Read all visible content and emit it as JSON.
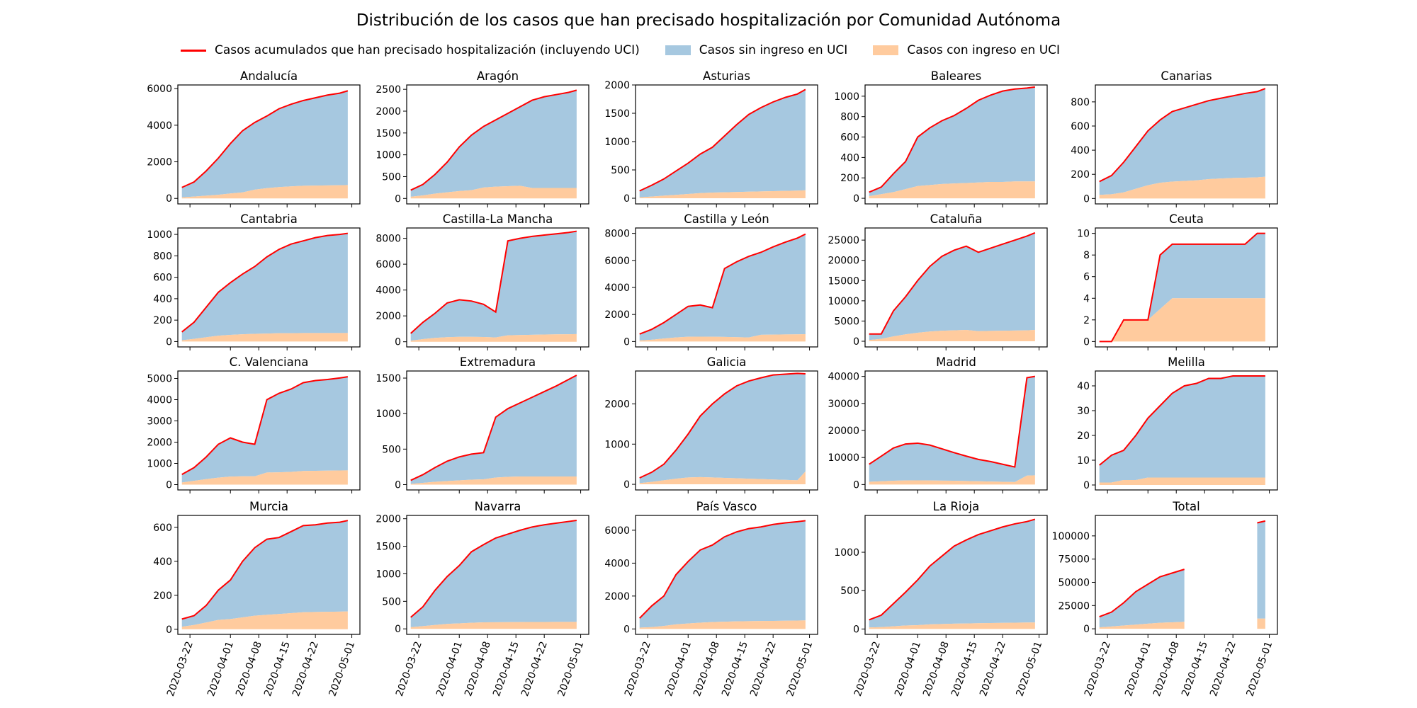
{
  "chart_data": {
    "type": "area",
    "title": "Distribución de los casos que han precisado hospitalización por Comunidad Autónoma",
    "legend": {
      "placement": "top",
      "entries": [
        {
          "label": "Casos acumulados que han precisado hospitalización (incluyendo UCI)",
          "kind": "line",
          "color": "#ff0000"
        },
        {
          "label": "Casos sin ingreso en UCI",
          "kind": "area",
          "color": "#a6c8e0"
        },
        {
          "label": "Casos con ingreso en UCI",
          "kind": "area",
          "color": "#ffcb9e"
        }
      ]
    },
    "x_tick_labels": [
      "2020-03-22",
      "2020-04-01",
      "2020-04-08",
      "2020-04-15",
      "2020-04-22",
      "2020-05-01"
    ],
    "x_range": [
      "2020-03-19",
      "2020-05-03"
    ],
    "dates": [
      "2020-03-20",
      "2020-03-23",
      "2020-03-26",
      "2020-03-29",
      "2020-04-01",
      "2020-04-04",
      "2020-04-07",
      "2020-04-10",
      "2020-04-13",
      "2020-04-16",
      "2020-04-19",
      "2020-04-22",
      "2020-04-25",
      "2020-04-28",
      "2020-04-30"
    ],
    "panels": [
      {
        "name": "Andalucía",
        "ylim": [
          -300,
          6200
        ],
        "yticks": [
          0,
          2000,
          4000,
          6000
        ],
        "total": [
          600,
          900,
          1500,
          2200,
          3000,
          3700,
          4150,
          4500,
          4900,
          5150,
          5350,
          5500,
          5650,
          5750,
          5880
        ],
        "uci": [
          60,
          100,
          150,
          200,
          270,
          330,
          480,
          560,
          620,
          660,
          690,
          700,
          710,
          720,
          730
        ]
      },
      {
        "name": "Aragón",
        "ylim": [
          -125,
          2600
        ],
        "yticks": [
          0,
          500,
          1000,
          1500,
          2000,
          2500
        ],
        "total": [
          190,
          320,
          550,
          830,
          1180,
          1450,
          1650,
          1800,
          1950,
          2100,
          2250,
          2330,
          2380,
          2430,
          2480
        ],
        "uci": [
          40,
          70,
          110,
          140,
          170,
          190,
          250,
          270,
          280,
          290,
          240,
          240,
          240,
          240,
          240
        ]
      },
      {
        "name": "Asturias",
        "ylim": [
          -100,
          2000
        ],
        "yticks": [
          0,
          500,
          1000,
          1500,
          2000
        ],
        "total": [
          130,
          230,
          340,
          480,
          620,
          780,
          900,
          1100,
          1300,
          1480,
          1600,
          1700,
          1780,
          1840,
          1920
        ],
        "uci": [
          15,
          30,
          45,
          60,
          75,
          90,
          100,
          105,
          110,
          115,
          120,
          125,
          130,
          135,
          140
        ]
      },
      {
        "name": "Baleares",
        "ylim": [
          -55,
          1110
        ],
        "yticks": [
          0,
          200,
          400,
          600,
          800,
          1000
        ],
        "total": [
          60,
          110,
          240,
          360,
          600,
          690,
          760,
          810,
          880,
          960,
          1010,
          1050,
          1070,
          1080,
          1090
        ],
        "uci": [
          20,
          40,
          60,
          90,
          120,
          130,
          140,
          145,
          150,
          155,
          160,
          160,
          165,
          165,
          165
        ]
      },
      {
        "name": "Canarias",
        "ylim": [
          -45,
          940
        ],
        "yticks": [
          0,
          200,
          400,
          600,
          800
        ],
        "total": [
          140,
          190,
          300,
          430,
          560,
          650,
          720,
          750,
          780,
          810,
          830,
          850,
          870,
          885,
          910
        ],
        "uci": [
          30,
          35,
          50,
          80,
          110,
          130,
          140,
          145,
          150,
          160,
          165,
          170,
          172,
          175,
          180
        ]
      },
      {
        "name": "Cantabria",
        "ylim": [
          -50,
          1060
        ],
        "yticks": [
          0,
          200,
          400,
          600,
          800,
          1000
        ],
        "total": [
          90,
          180,
          320,
          460,
          550,
          630,
          700,
          790,
          860,
          910,
          940,
          970,
          990,
          1000,
          1010
        ],
        "uci": [
          12,
          25,
          40,
          55,
          62,
          68,
          72,
          75,
          78,
          78,
          80,
          80,
          80,
          80,
          80
        ]
      },
      {
        "name": "Castilla-La Mancha",
        "ylim": [
          -400,
          8800
        ],
        "yticks": [
          0,
          2000,
          4000,
          6000,
          8000
        ],
        "total": [
          650,
          1500,
          2200,
          3000,
          3250,
          3150,
          2900,
          2300,
          7800,
          8000,
          8150,
          8250,
          8350,
          8450,
          8550
        ],
        "uci": [
          80,
          200,
          300,
          350,
          380,
          380,
          370,
          330,
          500,
          520,
          540,
          560,
          570,
          580,
          590
        ]
      },
      {
        "name": "Castilla y León",
        "ylim": [
          -400,
          8400
        ],
        "yticks": [
          0,
          2000,
          4000,
          6000,
          8000
        ],
        "total": [
          550,
          900,
          1400,
          2000,
          2600,
          2700,
          2500,
          5400,
          5900,
          6300,
          6600,
          7000,
          7350,
          7650,
          7950
        ],
        "uci": [
          80,
          130,
          220,
          300,
          350,
          360,
          350,
          340,
          320,
          300,
          500,
          510,
          520,
          530,
          540
        ]
      },
      {
        "name": "Cataluña",
        "ylim": [
          -1400,
          28000
        ],
        "yticks": [
          0,
          5000,
          10000,
          15000,
          20000,
          25000
        ],
        "total": [
          1800,
          1800,
          7500,
          11000,
          15000,
          18500,
          21000,
          22500,
          23500,
          22000,
          23000,
          24000,
          25000,
          26000,
          26800
        ],
        "uci": [
          300,
          600,
          1200,
          1700,
          2100,
          2400,
          2600,
          2700,
          2800,
          2500,
          2550,
          2600,
          2650,
          2700,
          2800
        ]
      },
      {
        "name": "Ceuta",
        "ylim": [
          -0.5,
          10.5
        ],
        "yticks": [
          0,
          2,
          4,
          6,
          8,
          10
        ],
        "total": [
          0,
          0,
          2,
          2,
          2,
          8,
          9,
          9,
          9,
          9,
          9,
          9,
          9,
          10,
          10
        ],
        "uci": [
          0,
          0,
          2,
          2,
          2,
          3,
          4,
          4,
          4,
          4,
          4,
          4,
          4,
          4,
          4
        ]
      },
      {
        "name": "C. Valenciana",
        "ylim": [
          -250,
          5350
        ],
        "yticks": [
          0,
          1000,
          2000,
          3000,
          4000,
          5000
        ],
        "total": [
          480,
          800,
          1300,
          1900,
          2200,
          2000,
          1900,
          4000,
          4300,
          4500,
          4800,
          4900,
          4950,
          5020,
          5080
        ],
        "uci": [
          100,
          180,
          260,
          330,
          380,
          390,
          390,
          570,
          580,
          600,
          640,
          650,
          660,
          665,
          670
        ]
      },
      {
        "name": "Extremadura",
        "ylim": [
          -75,
          1600
        ],
        "yticks": [
          0,
          500,
          1000,
          1500
        ],
        "total": [
          60,
          140,
          240,
          330,
          390,
          430,
          450,
          950,
          1070,
          1150,
          1230,
          1310,
          1390,
          1480,
          1540
        ],
        "uci": [
          10,
          25,
          40,
          50,
          60,
          70,
          75,
          100,
          110,
          115,
          115,
          115,
          115,
          115,
          115
        ]
      },
      {
        "name": "Galicia",
        "ylim": [
          -140,
          2820
        ],
        "yticks": [
          0,
          1000,
          2000
        ],
        "total": [
          160,
          300,
          500,
          850,
          1250,
          1700,
          2000,
          2250,
          2450,
          2570,
          2650,
          2720,
          2740,
          2760,
          2750
        ],
        "uci": [
          30,
          60,
          100,
          140,
          170,
          180,
          170,
          160,
          150,
          140,
          130,
          120,
          110,
          100,
          320
        ]
      },
      {
        "name": "Madrid",
        "ylim": [
          -2000,
          42000
        ],
        "yticks": [
          0,
          10000,
          20000,
          30000,
          40000
        ],
        "total": [
          7500,
          10500,
          13500,
          15000,
          15300,
          14600,
          13200,
          11800,
          10500,
          9300,
          8500,
          7500,
          6500,
          39500,
          40000
        ],
        "uci": [
          1000,
          1200,
          1400,
          1500,
          1550,
          1500,
          1450,
          1400,
          1300,
          1200,
          1100,
          1000,
          900,
          3300,
          3400
        ]
      },
      {
        "name": "Melilla",
        "ylim": [
          -2,
          46
        ],
        "yticks": [
          0,
          10,
          20,
          30,
          40
        ],
        "total": [
          8,
          12,
          14,
          20,
          27,
          32,
          37,
          40,
          41,
          43,
          43,
          44,
          44,
          44,
          44
        ],
        "uci": [
          1,
          1,
          2,
          2,
          3,
          3,
          3,
          3,
          3,
          3,
          3,
          3,
          3,
          3,
          3
        ]
      },
      {
        "name": "Murcia",
        "ylim": [
          -30,
          670
        ],
        "yticks": [
          0,
          200,
          400,
          600
        ],
        "total": [
          60,
          80,
          140,
          230,
          290,
          400,
          480,
          530,
          540,
          575,
          610,
          615,
          625,
          630,
          640
        ],
        "uci": [
          15,
          25,
          40,
          55,
          60,
          70,
          80,
          85,
          90,
          95,
          100,
          102,
          103,
          104,
          105
        ]
      },
      {
        "name": "Navarra",
        "ylim": [
          -100,
          2060
        ],
        "yticks": [
          0,
          500,
          1000,
          1500,
          2000
        ],
        "total": [
          210,
          400,
          700,
          950,
          1150,
          1400,
          1530,
          1650,
          1720,
          1790,
          1850,
          1890,
          1920,
          1950,
          1970
        ],
        "uci": [
          30,
          50,
          70,
          90,
          100,
          110,
          118,
          120,
          122,
          124,
          125,
          125,
          126,
          126,
          127
        ]
      },
      {
        "name": "País Vasco",
        "ylim": [
          -330,
          6900
        ],
        "yticks": [
          0,
          2000,
          4000,
          6000
        ],
        "total": [
          650,
          1400,
          2000,
          3300,
          4100,
          4800,
          5100,
          5600,
          5900,
          6100,
          6200,
          6350,
          6450,
          6520,
          6580
        ],
        "uci": [
          80,
          110,
          180,
          280,
          330,
          380,
          420,
          440,
          460,
          470,
          480,
          490,
          500,
          510,
          520
        ]
      },
      {
        "name": "La Rioja",
        "ylim": [
          -70,
          1480
        ],
        "yticks": [
          0,
          500,
          1000
        ],
        "total": [
          120,
          180,
          330,
          480,
          640,
          820,
          950,
          1080,
          1160,
          1230,
          1280,
          1330,
          1370,
          1400,
          1430
        ],
        "uci": [
          20,
          25,
          35,
          45,
          50,
          60,
          65,
          70,
          72,
          75,
          78,
          80,
          82,
          84,
          85
        ]
      },
      {
        "name": "Total",
        "ylim": [
          -6000,
          122000
        ],
        "yticks": [
          0,
          25000,
          50000,
          75000,
          100000
        ],
        "total": [
          13000,
          18000,
          28000,
          40000,
          48000,
          56000,
          60000,
          64000,
          null,
          null,
          null,
          null,
          null,
          114000,
          116000
        ],
        "uci": [
          1500,
          2500,
          3500,
          4500,
          5500,
          6500,
          7000,
          7500,
          null,
          null,
          null,
          null,
          null,
          11000,
          11000
        ]
      }
    ]
  }
}
